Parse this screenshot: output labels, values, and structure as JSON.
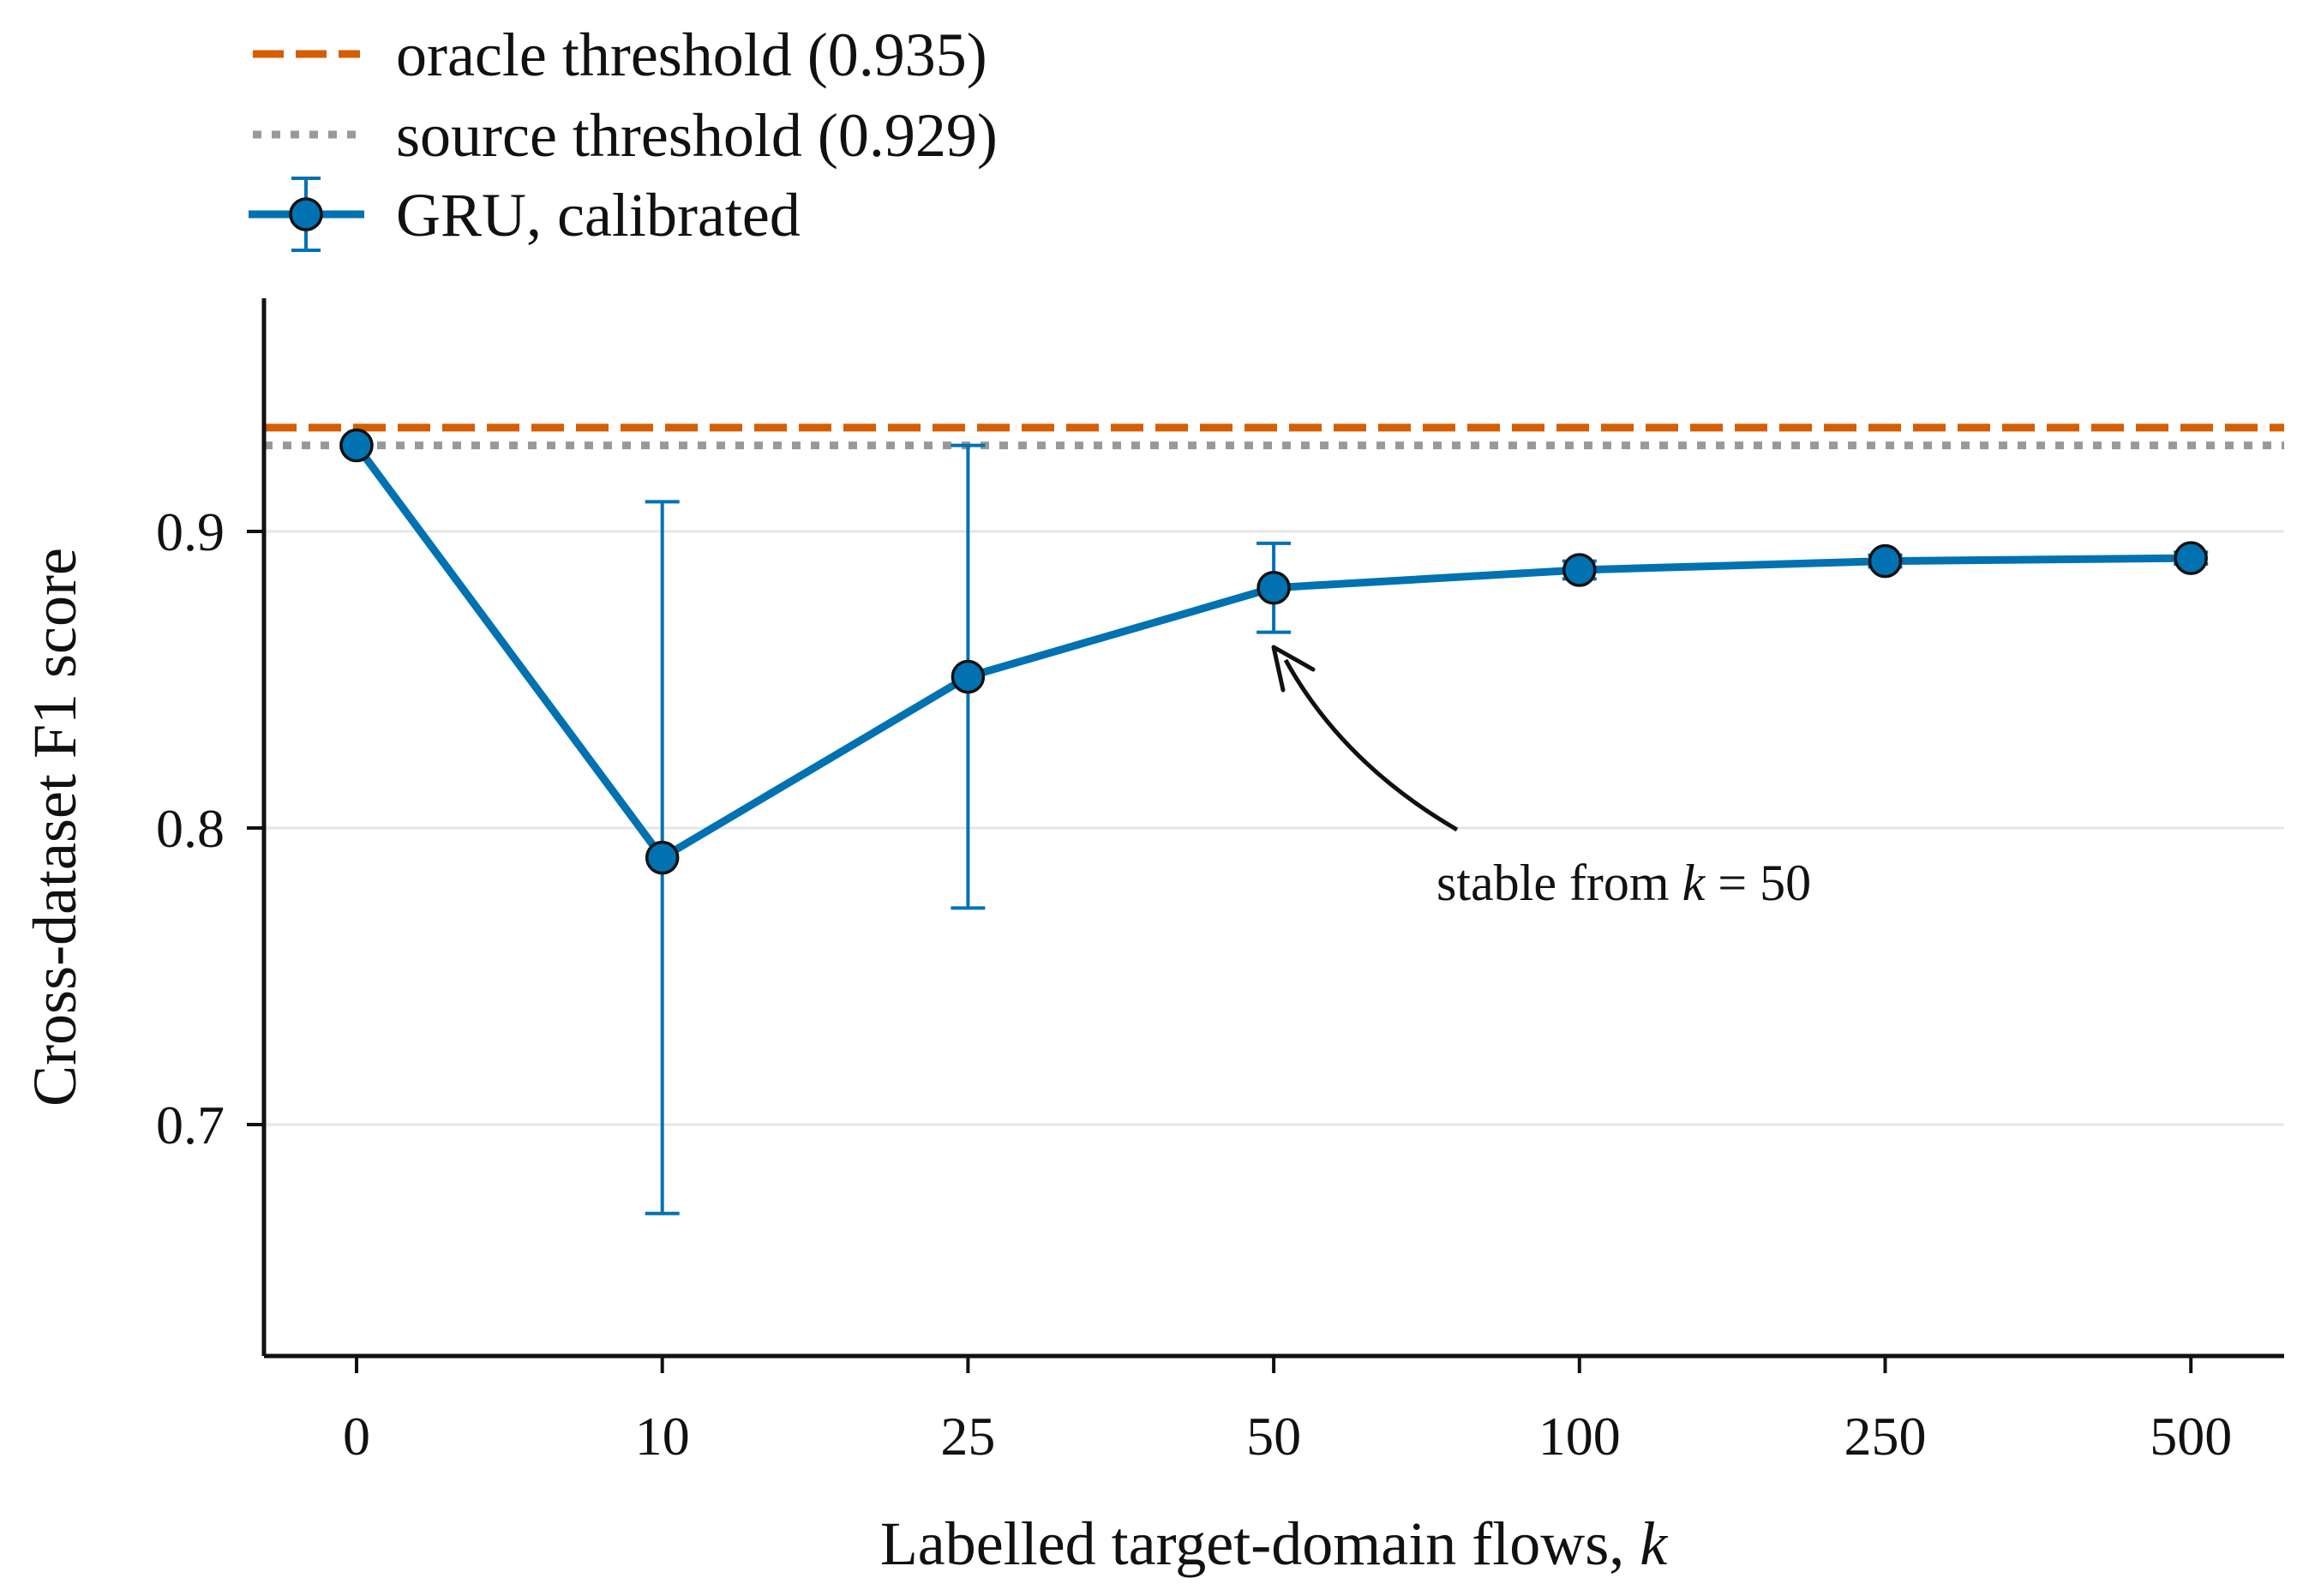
{
  "chart_data": {
    "type": "line",
    "xlabel": "Labelled target-domain flows, ",
    "xlabel_var": "k",
    "ylabel": "Cross-dataset F1 score",
    "categories": [
      "0",
      "10",
      "25",
      "50",
      "100",
      "250",
      "500"
    ],
    "x_scale": "categorical",
    "ylim": [
      0.62,
      0.98
    ],
    "yticks": [
      0.7,
      0.8,
      0.9
    ],
    "ytick_labels": [
      "0.7",
      "0.8",
      "0.9"
    ],
    "grid": "horizontal",
    "legend_position": "top-left, above plot",
    "series": [
      {
        "name": "GRU, calibrated",
        "color": "#0072B2",
        "values": [
          0.929,
          0.79,
          0.851,
          0.881,
          0.887,
          0.89,
          0.891
        ],
        "error_low": [
          0.929,
          0.67,
          0.773,
          0.866,
          0.884,
          0.888,
          0.889
        ],
        "error_high": [
          0.929,
          0.91,
          0.929,
          0.896,
          0.89,
          0.892,
          0.893
        ]
      }
    ],
    "reference_lines": [
      {
        "name": "oracle threshold (0.935)",
        "value": 0.935,
        "color": "#D55E00",
        "style": "dashed"
      },
      {
        "name": "source threshold (0.929)",
        "value": 0.929,
        "color": "#999999",
        "style": "dotted"
      }
    ],
    "annotation": {
      "text_prefix": "stable from ",
      "text_var": "k",
      "text_suffix": " = 50",
      "points_to_category": "50"
    }
  }
}
